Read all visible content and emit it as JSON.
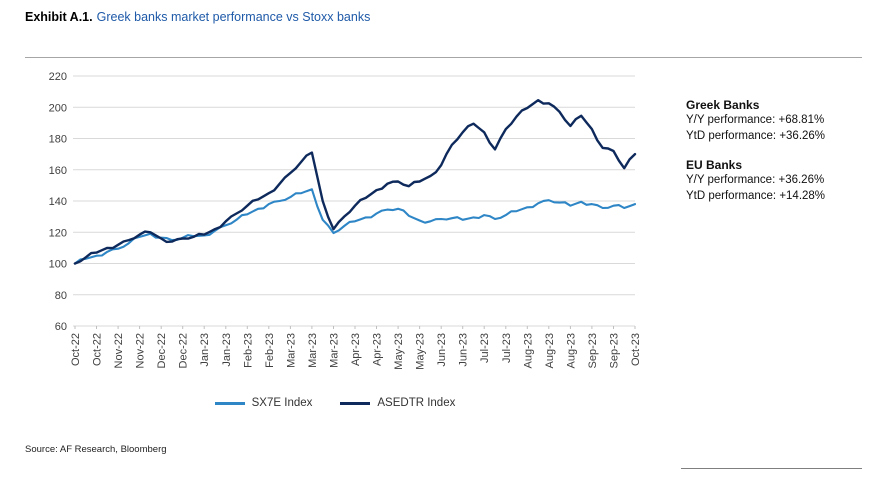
{
  "header": {
    "exhibit_label": "Exhibit A.1.",
    "title": "Greek banks market performance vs Stoxx banks"
  },
  "chart_data": {
    "type": "line",
    "title": "Greek banks market performance vs Stoxx banks",
    "xlabel": "",
    "ylabel": "",
    "ylim": [
      60,
      220
    ],
    "y_ticks": [
      60,
      80,
      100,
      120,
      140,
      160,
      180,
      200,
      220
    ],
    "grid": "horizontal",
    "legend_position": "bottom",
    "x_labels": [
      "Oct-22",
      "Oct-22",
      "Nov-22",
      "Nov-22",
      "Dec-22",
      "Dec-22",
      "Jan-23",
      "Jan-23",
      "Feb-23",
      "Feb-23",
      "Mar-23",
      "Mar-23",
      "Mar-23",
      "Apr-23",
      "Apr-23",
      "May-23",
      "May-23",
      "Jun-23",
      "Jun-23",
      "Jul-23",
      "Jul-23",
      "Aug-23",
      "Aug-23",
      "Aug-23",
      "Sep-23",
      "Sep-23",
      "Oct-23"
    ],
    "series": [
      {
        "name": "SX7E Index",
        "color": "#2e86c6",
        "values": [
          100,
          103,
          105,
          107.5,
          109.5,
          113,
          117,
          119,
          116.5,
          115,
          116.5,
          117.5,
          118,
          121,
          124.5,
          128,
          131.5,
          135,
          138,
          140,
          142.5,
          145,
          147.5,
          128,
          119.5,
          124,
          127,
          129.5,
          132,
          134.5,
          135,
          130.5,
          127.5,
          127,
          128.5,
          129,
          128,
          129.5,
          131,
          128.5,
          131,
          133.5,
          136,
          138.5,
          140.5,
          139,
          137,
          139.5,
          138,
          135.5,
          137,
          135.5,
          138
        ]
      },
      {
        "name": "ASEDTR Index",
        "color": "#0e2a5c",
        "values": [
          100,
          104,
          107,
          110,
          112,
          115,
          118.5,
          120,
          116,
          114,
          116,
          117,
          118.5,
          122,
          127,
          132,
          137,
          141,
          145,
          151,
          158,
          165,
          171,
          140,
          122,
          130,
          137,
          142,
          147,
          151,
          152.5,
          149.5,
          152.5,
          156,
          163,
          176,
          184,
          189.5,
          184,
          173,
          186,
          194,
          199.5,
          204.5,
          202.5,
          197,
          188,
          194.5,
          186,
          174,
          172,
          161,
          170
        ]
      }
    ]
  },
  "performance": {
    "blocks": [
      {
        "title": "Greek Banks",
        "lines": [
          "Y/Y performance: +68.81%",
          "YtD performance: +36.26%"
        ]
      },
      {
        "title": "EU Banks",
        "lines": [
          "Y/Y performance: +36.26%",
          "YtD performance: +14.28%"
        ]
      }
    ]
  },
  "source": "Source: AF Research, Bloomberg"
}
